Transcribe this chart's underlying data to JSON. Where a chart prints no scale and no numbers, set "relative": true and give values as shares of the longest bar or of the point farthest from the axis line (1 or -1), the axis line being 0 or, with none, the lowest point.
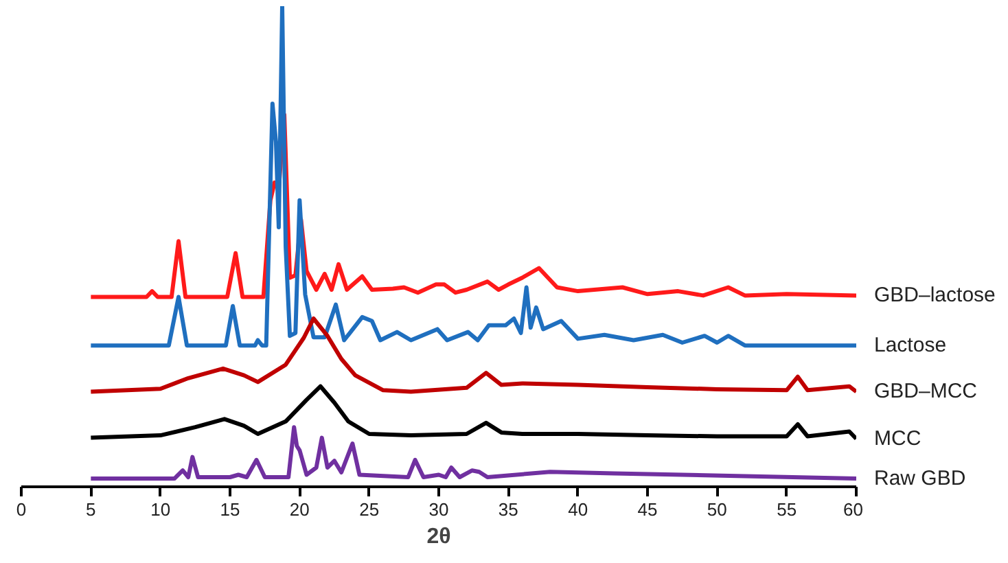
{
  "chart_data": {
    "type": "line",
    "relative": true,
    "xlabel": "2θ",
    "xlim": [
      0,
      60
    ],
    "xticks": [
      0,
      5,
      10,
      15,
      20,
      25,
      30,
      35,
      40,
      45,
      50,
      55,
      60
    ],
    "grid": false,
    "legend": false,
    "marker": "none",
    "line_style": "solid",
    "series": [
      {
        "name": "GBD–lactose",
        "color": "#ff1a1a",
        "x": [
          5,
          9,
          9.4,
          9.8,
          10.8,
          11.3,
          11.8,
          14.8,
          15.4,
          15.9,
          17.4,
          17.9,
          18.2,
          18.5,
          18.9,
          19.3,
          19.7,
          20.1,
          20.5,
          21.2,
          21.8,
          22.3,
          22.8,
          23.4,
          24.5,
          25.2,
          26.7,
          27.5,
          28.5,
          29.8,
          30.4,
          31.2,
          32,
          33.5,
          34.3,
          35,
          36,
          37.2,
          38.5,
          40,
          43.2,
          45,
          47.2,
          49,
          50.8,
          52,
          55,
          60
        ],
        "values": [
          0.395,
          0.395,
          0.407,
          0.395,
          0.395,
          0.511,
          0.395,
          0.395,
          0.486,
          0.395,
          0.395,
          0.596,
          0.633,
          0.62,
          0.774,
          0.435,
          0.44,
          0.556,
          0.449,
          0.41,
          0.443,
          0.41,
          0.463,
          0.41,
          0.438,
          0.41,
          0.412,
          0.415,
          0.404,
          0.421,
          0.421,
          0.404,
          0.41,
          0.427,
          0.41,
          0.421,
          0.435,
          0.455,
          0.415,
          0.407,
          0.415,
          0.401,
          0.407,
          0.398,
          0.415,
          0.398,
          0.401,
          0.398
        ]
      },
      {
        "name": "Lactose",
        "color": "#1f6fbf",
        "x": [
          5,
          10.6,
          11.3,
          11.9,
          14.7,
          15.2,
          15.7,
          16.8,
          17.0,
          17.3,
          17.6,
          18.05,
          18.3,
          18.5,
          18.75,
          19.0,
          19.3,
          19.7,
          20.0,
          20.4,
          21.0,
          21.8,
          22.6,
          23.2,
          24.5,
          25.2,
          25.8,
          27,
          28,
          29.9,
          30.6,
          32.1,
          32.8,
          33.6,
          34.8,
          35.4,
          35.9,
          36.3,
          36.6,
          37.0,
          37.5,
          38.8,
          40,
          41.9,
          44,
          46.1,
          47.5,
          49.1,
          50,
          50.8,
          52,
          60
        ],
        "values": [
          0.294,
          0.294,
          0.395,
          0.294,
          0.294,
          0.376,
          0.294,
          0.294,
          0.305,
          0.294,
          0.294,
          0.797,
          0.718,
          0.54,
          1.0,
          0.5,
          0.314,
          0.32,
          0.596,
          0.4,
          0.311,
          0.311,
          0.379,
          0.305,
          0.353,
          0.345,
          0.305,
          0.322,
          0.305,
          0.328,
          0.305,
          0.322,
          0.305,
          0.336,
          0.336,
          0.35,
          0.32,
          0.415,
          0.331,
          0.373,
          0.328,
          0.345,
          0.308,
          0.316,
          0.305,
          0.316,
          0.3,
          0.314,
          0.3,
          0.314,
          0.294,
          0.294
        ]
      },
      {
        "name": "GBD–MCC",
        "color": "#c00000",
        "x": [
          5,
          10,
          12,
          14.5,
          16,
          17,
          19,
          20.3,
          21.0,
          22,
          23,
          24,
          26,
          28,
          32,
          33.4,
          34.5,
          36,
          40,
          45,
          50,
          55,
          55.8,
          56.5,
          59.5,
          60
        ],
        "values": [
          0.198,
          0.204,
          0.226,
          0.246,
          0.232,
          0.218,
          0.254,
          0.31,
          0.35,
          0.314,
          0.266,
          0.232,
          0.201,
          0.198,
          0.206,
          0.237,
          0.212,
          0.215,
          0.212,
          0.207,
          0.203,
          0.201,
          0.229,
          0.201,
          0.209,
          0.198
        ]
      },
      {
        "name": "MCC",
        "color": "#000000",
        "x": [
          5,
          10,
          12.5,
          14.6,
          16,
          17,
          19,
          20.5,
          21.5,
          22.5,
          23.5,
          25,
          28,
          32,
          33.4,
          34.5,
          36,
          40,
          45,
          50,
          55,
          55.8,
          56.5,
          59.5,
          60
        ],
        "values": [
          0.102,
          0.107,
          0.124,
          0.141,
          0.127,
          0.11,
          0.136,
          0.181,
          0.209,
          0.175,
          0.136,
          0.11,
          0.107,
          0.11,
          0.133,
          0.113,
          0.11,
          0.11,
          0.107,
          0.105,
          0.105,
          0.13,
          0.105,
          0.115,
          0.1
        ]
      },
      {
        "name": "Raw GBD",
        "color": "#7030a0",
        "x": [
          5,
          11,
          11.6,
          12,
          12.3,
          12.7,
          15,
          15.6,
          16.2,
          16.9,
          17.5,
          19.2,
          19.6,
          19.8,
          20.0,
          20.5,
          21.2,
          21.6,
          22.0,
          22.5,
          23.0,
          23.8,
          24.3,
          27.8,
          28.3,
          28.9,
          30.0,
          30.5,
          30.9,
          31.5,
          32.4,
          32.9,
          33.5,
          38,
          42.6,
          60
        ],
        "values": [
          0.017,
          0.017,
          0.034,
          0.02,
          0.062,
          0.02,
          0.02,
          0.025,
          0.02,
          0.056,
          0.02,
          0.02,
          0.124,
          0.085,
          0.076,
          0.025,
          0.04,
          0.102,
          0.04,
          0.054,
          0.03,
          0.09,
          0.025,
          0.02,
          0.056,
          0.02,
          0.025,
          0.02,
          0.04,
          0.02,
          0.034,
          0.031,
          0.02,
          0.031,
          0.028,
          0.017
        ]
      }
    ]
  }
}
